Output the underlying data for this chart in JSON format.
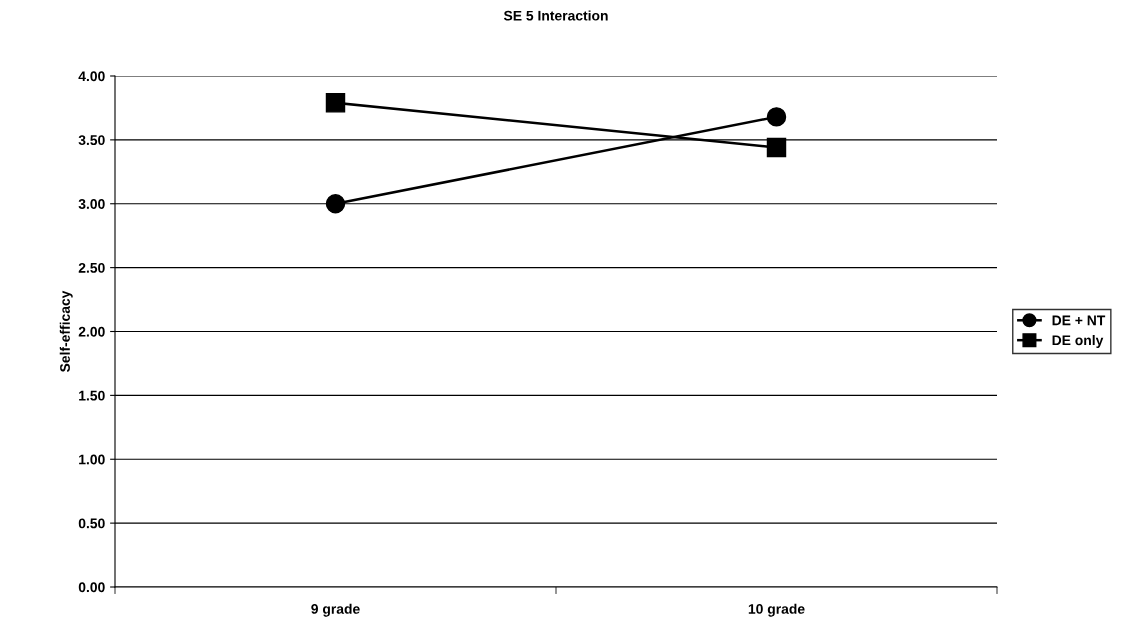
{
  "chart_data": {
    "type": "line",
    "title": "SE 5 Interaction",
    "ylabel": "Self-efficacy",
    "categories": [
      "9 grade",
      "10 grade"
    ],
    "series": [
      {
        "name": "DE + NT",
        "color": "#000000",
        "marker": "circle",
        "values": [
          3.0,
          3.68
        ]
      },
      {
        "name": "DE only",
        "color": "#000000",
        "marker": "square",
        "values": [
          3.79,
          3.44
        ]
      }
    ],
    "ylim": [
      0,
      4
    ],
    "yticks": [
      {
        "value": 0,
        "label": "0.00"
      },
      {
        "value": 0.5,
        "label": "0.50"
      },
      {
        "value": 1,
        "label": "1.00"
      },
      {
        "value": 1.5,
        "label": "1.50"
      },
      {
        "value": 2,
        "label": "2.00"
      },
      {
        "value": 2.5,
        "label": "2.50"
      },
      {
        "value": 3,
        "label": "3.00"
      },
      {
        "value": 3.5,
        "label": "3.50"
      },
      {
        "value": 4,
        "label": "4.00"
      }
    ],
    "grid": "y",
    "legend": "right",
    "line_style": "solid"
  }
}
